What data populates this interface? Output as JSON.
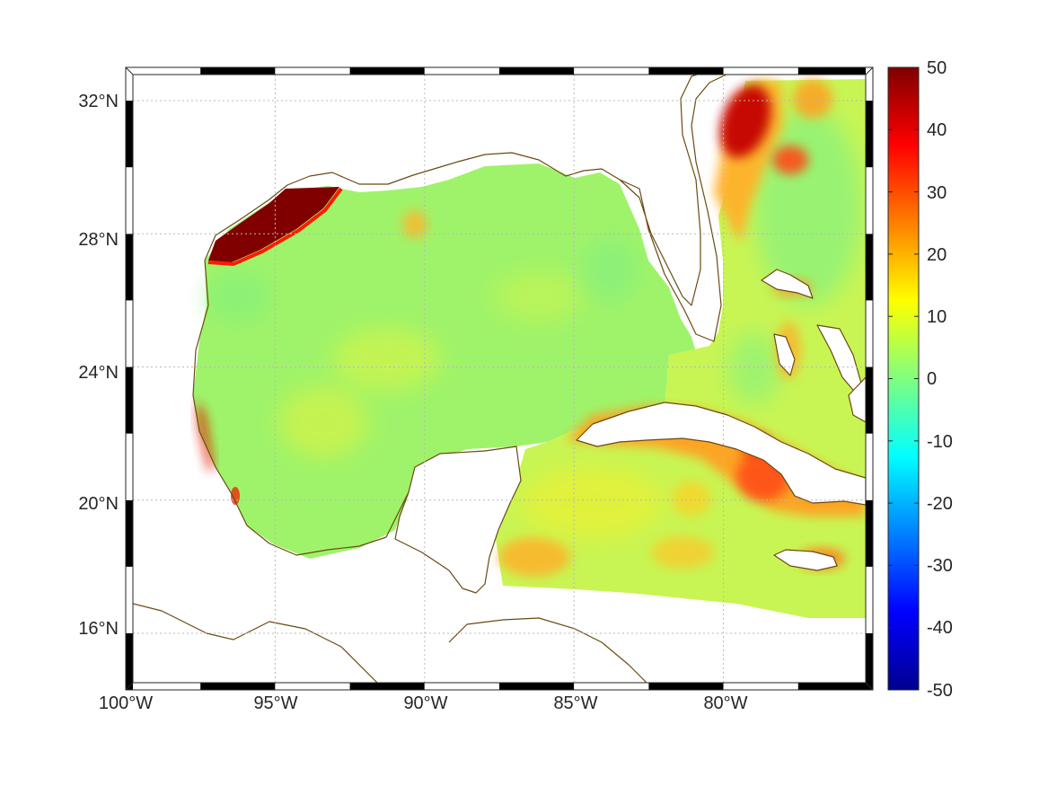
{
  "map": {
    "lon_ticks": [
      {
        "value": -100,
        "label": "100°W"
      },
      {
        "value": -95,
        "label": "95°W"
      },
      {
        "value": -90,
        "label": "90°W"
      },
      {
        "value": -85,
        "label": "85°W"
      },
      {
        "value": -80,
        "label": "80°W"
      }
    ],
    "lat_ticks": [
      {
        "value": 32,
        "label": "32°N"
      },
      {
        "value": 28,
        "label": "28°N"
      },
      {
        "value": 24,
        "label": "24°N"
      },
      {
        "value": 20,
        "label": "20°N"
      },
      {
        "value": 16,
        "label": "16°N"
      }
    ],
    "lon_range": [
      -100,
      -75
    ],
    "lat_range": [
      14.3,
      33
    ],
    "grid": true,
    "coastline_color": "#6b4a12",
    "land_color": "#ffffff",
    "features": [
      {
        "name": "texas-coast-hotspot",
        "value": 50
      },
      {
        "name": "gulf-stream-hotspot",
        "value": 40
      },
      {
        "name": "cuba-warm-band",
        "value": 30
      },
      {
        "name": "gulf-background",
        "value": 5
      }
    ]
  },
  "colorbar": {
    "ticks": [
      50,
      40,
      30,
      20,
      10,
      0,
      -10,
      -20,
      -30,
      -40,
      -50
    ],
    "tick_labels": [
      "50",
      "40",
      "30",
      "20",
      "10",
      "0",
      "-10",
      "-20",
      "-30",
      "-40",
      "-50"
    ],
    "range": [
      -50,
      50
    ],
    "colormap": "jet",
    "placement": "right"
  }
}
